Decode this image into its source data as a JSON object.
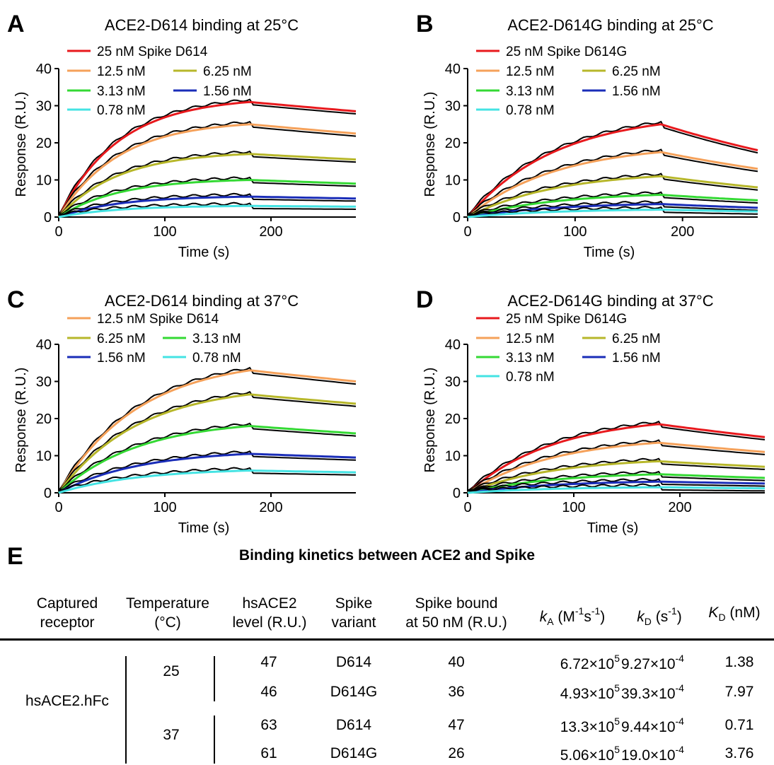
{
  "panels": [
    {
      "letter": "A",
      "title": "ACE2-D614 binding at 25°C",
      "xlabel": "Time (s)",
      "ylabel": "Response (R.U.)",
      "xticks": [
        "0",
        "100",
        "200"
      ],
      "yticks": [
        "0",
        "10",
        "20",
        "30",
        "40"
      ],
      "legend": [
        {
          "label": "25 nM Spike D614",
          "color": "#e8191d"
        },
        {
          "label": "12.5 nM",
          "color": "#f5a15a"
        },
        {
          "label": "6.25 nM",
          "color": "#b7b72a"
        },
        {
          "label": "3.13 nM",
          "color": "#34d934"
        },
        {
          "label": "1.56 nM",
          "color": "#1a2db8"
        },
        {
          "label": "0.78 nM",
          "color": "#44e3e3"
        }
      ]
    },
    {
      "letter": "B",
      "title": "ACE2-D614G binding at 25°C",
      "xlabel": "Time (s)",
      "ylabel": "Response (R.U.)",
      "xticks": [
        "0",
        "100",
        "200"
      ],
      "yticks": [
        "0",
        "10",
        "20",
        "30",
        "40"
      ],
      "legend": [
        {
          "label": "25 nM Spike D614G",
          "color": "#e8191d"
        },
        {
          "label": "12.5 nM",
          "color": "#f5a15a"
        },
        {
          "label": "6.25 nM",
          "color": "#b7b72a"
        },
        {
          "label": "3.13 nM",
          "color": "#34d934"
        },
        {
          "label": "1.56 nM",
          "color": "#1a2db8"
        },
        {
          "label": "0.78 nM",
          "color": "#44e3e3"
        }
      ]
    },
    {
      "letter": "C",
      "title": "ACE2-D614 binding at 37°C",
      "xlabel": "Time (s)",
      "ylabel": "Response (R.U.)",
      "xticks": [
        "0",
        "100",
        "200"
      ],
      "yticks": [
        "0",
        "10",
        "20",
        "30",
        "40"
      ],
      "legend": [
        {
          "label": "12.5 nM Spike D614",
          "color": "#f5a15a"
        },
        {
          "label": "6.25 nM",
          "color": "#b7b72a"
        },
        {
          "label": "3.13 nM",
          "color": "#34d934"
        },
        {
          "label": "1.56 nM",
          "color": "#1a2db8"
        },
        {
          "label": "0.78 nM",
          "color": "#44e3e3"
        }
      ]
    },
    {
      "letter": "D",
      "title": "ACE2-D614G binding at 37°C",
      "xlabel": "Time (s)",
      "ylabel": "Response (R.U.)",
      "xticks": [
        "0",
        "100",
        "200"
      ],
      "yticks": [
        "0",
        "10",
        "20",
        "30",
        "40"
      ],
      "legend": [
        {
          "label": "25 nM Spike D614G",
          "color": "#e8191d"
        },
        {
          "label": "12.5 nM",
          "color": "#f5a15a"
        },
        {
          "label": "6.25 nM",
          "color": "#b7b72a"
        },
        {
          "label": "3.13 nM",
          "color": "#34d934"
        },
        {
          "label": "1.56 nM",
          "color": "#1a2db8"
        },
        {
          "label": "0.78 nM",
          "color": "#44e3e3"
        }
      ]
    }
  ],
  "chart_data": [
    {
      "type": "line",
      "panel": "A",
      "xlim": [
        0,
        280
      ],
      "ylim": [
        0,
        40
      ],
      "association_end_s": 180,
      "series": [
        {
          "name": "25 nM Spike D614",
          "color": "#e8191d",
          "peak": 31,
          "end": 28.5
        },
        {
          "name": "12.5 nM",
          "color": "#f5a15a",
          "peak": 25,
          "end": 22.5
        },
        {
          "name": "6.25 nM",
          "color": "#b7b72a",
          "peak": 17,
          "end": 15.5
        },
        {
          "name": "3.13 nM",
          "color": "#34d934",
          "peak": 10,
          "end": 9
        },
        {
          "name": "1.56 nM",
          "color": "#1a2db8",
          "peak": 5.5,
          "end": 5
        },
        {
          "name": "0.78 nM",
          "color": "#44e3e3",
          "peak": 3,
          "end": 2.8
        }
      ]
    },
    {
      "type": "line",
      "panel": "B",
      "xlim": [
        0,
        270
      ],
      "ylim": [
        0,
        40
      ],
      "association_end_s": 180,
      "series": [
        {
          "name": "25 nM Spike D614G",
          "color": "#e8191d",
          "peak": 25,
          "end": 18
        },
        {
          "name": "12.5 nM",
          "color": "#f5a15a",
          "peak": 17.5,
          "end": 13
        },
        {
          "name": "6.25 nM",
          "color": "#b7b72a",
          "peak": 11,
          "end": 8
        },
        {
          "name": "3.13 nM",
          "color": "#34d934",
          "peak": 6,
          "end": 4.5
        },
        {
          "name": "1.56 nM",
          "color": "#1a2db8",
          "peak": 3.5,
          "end": 2.5
        },
        {
          "name": "0.78 nM",
          "color": "#44e3e3",
          "peak": 2,
          "end": 1.5
        }
      ]
    },
    {
      "type": "line",
      "panel": "C",
      "xlim": [
        0,
        280
      ],
      "ylim": [
        0,
        40
      ],
      "association_end_s": 180,
      "series": [
        {
          "name": "12.5 nM Spike D614",
          "color": "#f5a15a",
          "peak": 33,
          "end": 30
        },
        {
          "name": "6.25 nM",
          "color": "#b7b72a",
          "peak": 26.5,
          "end": 24
        },
        {
          "name": "3.13 nM",
          "color": "#34d934",
          "peak": 18,
          "end": 16
        },
        {
          "name": "1.56 nM",
          "color": "#1a2db8",
          "peak": 10.5,
          "end": 9.5
        },
        {
          "name": "0.78 nM",
          "color": "#44e3e3",
          "peak": 6,
          "end": 5.5
        }
      ]
    },
    {
      "type": "line",
      "panel": "D",
      "xlim": [
        0,
        280
      ],
      "ylim": [
        0,
        40
      ],
      "association_end_s": 180,
      "series": [
        {
          "name": "25 nM Spike D614G",
          "color": "#e8191d",
          "peak": 18.5,
          "end": 15
        },
        {
          "name": "12.5 nM",
          "color": "#f5a15a",
          "peak": 13.5,
          "end": 11
        },
        {
          "name": "6.25 nM",
          "color": "#b7b72a",
          "peak": 8.5,
          "end": 7
        },
        {
          "name": "3.13 nM",
          "color": "#34d934",
          "peak": 5,
          "end": 4
        },
        {
          "name": "1.56 nM",
          "color": "#1a2db8",
          "peak": 3,
          "end": 2.5
        },
        {
          "name": "0.78 nM",
          "color": "#44e3e3",
          "peak": 1.5,
          "end": 1.2
        }
      ]
    }
  ],
  "table": {
    "letter": "E",
    "title": "Binding kinetics between ACE2 and Spike",
    "headers": {
      "receptor": [
        "Captured",
        "receptor"
      ],
      "temperature": [
        "Temperature",
        "(°C)"
      ],
      "level": [
        "hsACE2",
        "level (R.U.)"
      ],
      "variant": [
        "Spike",
        "variant"
      ],
      "bound": [
        "Spike bound",
        "at 50 nM (R.U.)"
      ],
      "ka": {
        "sym": "k",
        "sub": "A",
        "unit": " (M",
        "exp1": "-1",
        "mid": "s",
        "exp2": "-1",
        "close": ")"
      },
      "kd": {
        "sym": "k",
        "sub": "D",
        "unit": " (s",
        "exp1": "-1",
        "close": ")"
      },
      "KD": {
        "sym": "K",
        "sub": "D",
        "unit": " (nM)"
      }
    },
    "receptor": "hsACE2.hFc",
    "temperatures": [
      "25",
      "37"
    ],
    "rows": [
      {
        "level": "47",
        "variant": "D614",
        "bound": "40",
        "ka_base": "6.72×10",
        "ka_exp": "5",
        "kd_base": "9.27×10",
        "kd_exp": "-4",
        "KD": "1.38"
      },
      {
        "level": "46",
        "variant": "D614G",
        "bound": "36",
        "ka_base": "4.93×10",
        "ka_exp": "5",
        "kd_base": "39.3×10",
        "kd_exp": "-4",
        "KD": "7.97"
      },
      {
        "level": "63",
        "variant": "D614",
        "bound": "47",
        "ka_base": "13.3×10",
        "ka_exp": "5",
        "kd_base": "9.44×10",
        "kd_exp": "-4",
        "KD": "0.71"
      },
      {
        "level": "61",
        "variant": "D614G",
        "bound": "26",
        "ka_base": "5.06×10",
        "ka_exp": "5",
        "kd_base": "19.0×10",
        "kd_exp": "-4",
        "KD": "3.76"
      }
    ]
  }
}
